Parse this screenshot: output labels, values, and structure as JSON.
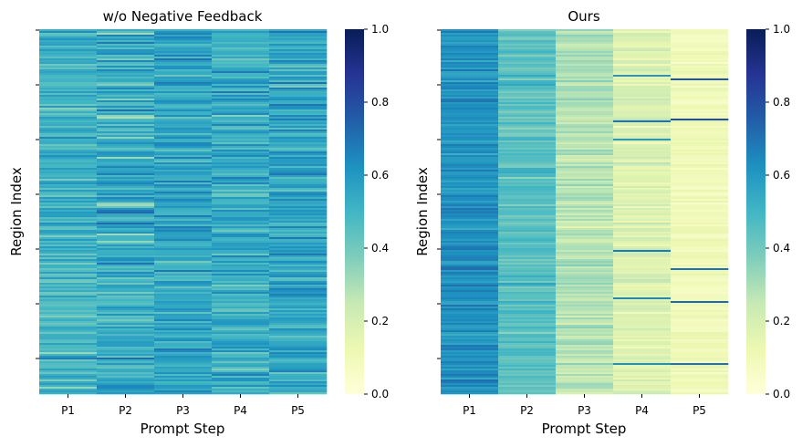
{
  "chart_data": [
    {
      "type": "heatmap",
      "title": "w/o Negative Feedback",
      "xlabel": "Prompt Step",
      "ylabel": "Region Index",
      "categories": [
        "P1",
        "P2",
        "P3",
        "P4",
        "P5"
      ],
      "rows": 200,
      "value_range": [
        0,
        1
      ],
      "colormap": "YlGnBu",
      "colorbar_ticks": [
        "0.0",
        "0.2",
        "0.4",
        "0.6",
        "0.8",
        "1.0"
      ],
      "column_profile": [
        {
          "step": "P1",
          "mean": 0.5,
          "spread": 0.12
        },
        {
          "step": "P2",
          "mean": 0.52,
          "spread": 0.17
        },
        {
          "step": "P3",
          "mean": 0.55,
          "spread": 0.12
        },
        {
          "step": "P4",
          "mean": 0.52,
          "spread": 0.12
        },
        {
          "step": "P5",
          "mean": 0.55,
          "spread": 0.14
        }
      ]
    },
    {
      "type": "heatmap",
      "title": "Ours",
      "xlabel": "Prompt Step",
      "ylabel": "Region Index",
      "categories": [
        "P1",
        "P2",
        "P3",
        "P4",
        "P5"
      ],
      "rows": 200,
      "value_range": [
        0,
        1
      ],
      "colormap": "YlGnBu",
      "colorbar_ticks": [
        "0.0",
        "0.2",
        "0.4",
        "0.6",
        "0.8",
        "1.0"
      ],
      "column_profile": [
        {
          "step": "P1",
          "mean": 0.62,
          "spread": 0.08
        },
        {
          "step": "P2",
          "mean": 0.45,
          "spread": 0.08
        },
        {
          "step": "P3",
          "mean": 0.28,
          "spread": 0.08
        },
        {
          "step": "P4",
          "mean": 0.18,
          "spread": 0.07
        },
        {
          "step": "P5",
          "mean": 0.1,
          "spread": 0.05
        }
      ],
      "highlight_rows": [
        {
          "step": "P5",
          "row": 27,
          "value": 0.78
        },
        {
          "step": "P5",
          "row": 49,
          "value": 0.8
        },
        {
          "step": "P5",
          "row": 131,
          "value": 0.7
        },
        {
          "step": "P5",
          "row": 149,
          "value": 0.72
        },
        {
          "step": "P5",
          "row": 183,
          "value": 0.7
        },
        {
          "step": "P4",
          "row": 25,
          "value": 0.6
        },
        {
          "step": "P4",
          "row": 50,
          "value": 0.7
        },
        {
          "step": "P4",
          "row": 60,
          "value": 0.6
        },
        {
          "step": "P4",
          "row": 121,
          "value": 0.68
        },
        {
          "step": "P4",
          "row": 147,
          "value": 0.65
        },
        {
          "step": "P4",
          "row": 183,
          "value": 0.62
        }
      ]
    }
  ]
}
